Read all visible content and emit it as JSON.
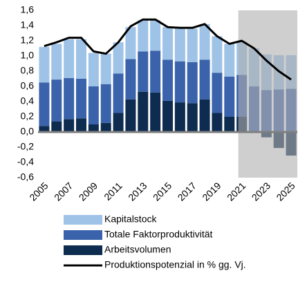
{
  "chart_data": {
    "type": "bar",
    "stacked": true,
    "categories": [
      "2005",
      null,
      "2007",
      null,
      "2009",
      null,
      "2011",
      null,
      "2013",
      null,
      "2015",
      null,
      "2017",
      null,
      "2019",
      null,
      "2021",
      null,
      "2023",
      null,
      "2025"
    ],
    "series": [
      {
        "name": "Kapitalstock",
        "color": "#9fc3e7",
        "values": [
          0.47,
          0.47,
          0.51,
          0.52,
          0.44,
          0.4,
          0.41,
          0.42,
          0.41,
          0.4,
          0.43,
          0.43,
          0.44,
          0.47,
          0.48,
          0.43,
          0.44,
          0.5,
          0.47,
          0.45,
          0.44
        ]
      },
      {
        "name": "Totale Faktorproduktivität",
        "color": "#3b63ab",
        "values": [
          0.57,
          0.55,
          0.54,
          0.52,
          0.5,
          0.51,
          0.52,
          0.53,
          0.53,
          0.55,
          0.54,
          0.54,
          0.54,
          0.52,
          0.53,
          0.53,
          0.55,
          0.6,
          0.55,
          0.56,
          0.57
        ]
      },
      {
        "name": "Arbeitsvolumen",
        "color": "#0e2c4f",
        "values": [
          0.08,
          0.14,
          0.17,
          0.18,
          0.1,
          0.12,
          0.25,
          0.43,
          0.53,
          0.52,
          0.41,
          0.39,
          0.38,
          0.43,
          0.25,
          0.2,
          0.2,
          0.0,
          -0.07,
          -0.21,
          -0.31
        ]
      },
      {
        "name": "Produktionspotenzial in % gg. Vj.",
        "color": "#000000",
        "type": "line",
        "values": [
          1.13,
          1.18,
          1.24,
          1.24,
          1.06,
          1.03,
          1.18,
          1.39,
          1.48,
          1.48,
          1.38,
          1.37,
          1.37,
          1.42,
          1.26,
          1.16,
          1.2,
          1.1,
          0.94,
          0.8,
          0.69
        ]
      }
    ],
    "ylim": [
      -0.6,
      1.6
    ],
    "yticks": [
      {
        "value": -0.6,
        "label": "-0,6"
      },
      {
        "value": -0.4,
        "label": "-0,4"
      },
      {
        "value": -0.2,
        "label": "-0,2"
      },
      {
        "value": 0,
        "label": "0,0"
      },
      {
        "value": 0.2,
        "label": "0,2"
      },
      {
        "value": 0.4,
        "label": "0,4"
      },
      {
        "value": 0.6,
        "label": "0,6"
      },
      {
        "value": 0.8,
        "label": "0,8"
      },
      {
        "value": 1.0,
        "label": "1,0"
      },
      {
        "value": 1.2,
        "label": "1,2"
      },
      {
        "value": 1.4,
        "label": "1,4"
      },
      {
        "value": 1.6,
        "label": "1,6"
      }
    ],
    "shade_from_index": 16,
    "legend": "bottom"
  }
}
